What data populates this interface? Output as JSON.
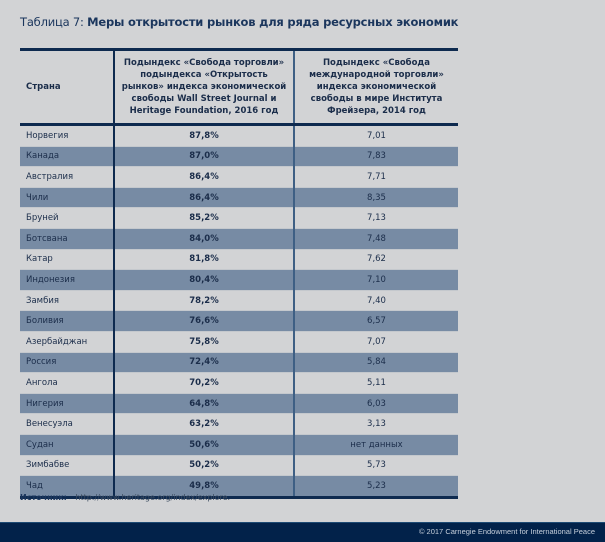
{
  "title": {
    "prefix": "Таблица 7: ",
    "main": "Меры открытости рынков для ряда ресурсных экономик"
  },
  "table": {
    "headers": [
      "Страна",
      "Подындекс «Свобода торговли» подындекса «Открытость рынков» индекса экономической свободы Wall Street Journal и Heritage Foundation, 2016 год",
      "Подындекс «Свобода международной торговли» индекса экономической свободы в мире Института Фрейзера, 2014 год"
    ],
    "rows": [
      {
        "country": "Норвегия",
        "heritage": "87,8%",
        "fraser": "7,01"
      },
      {
        "country": "Канада",
        "heritage": "87,0%",
        "fraser": "7,83"
      },
      {
        "country": "Австралия",
        "heritage": "86,4%",
        "fraser": "7,71"
      },
      {
        "country": "Чили",
        "heritage": "86,4%",
        "fraser": "8,35"
      },
      {
        "country": "Бруней",
        "heritage": "85,2%",
        "fraser": "7,13"
      },
      {
        "country": "Ботсвана",
        "heritage": "84,0%",
        "fraser": "7,48"
      },
      {
        "country": "Катар",
        "heritage": "81,8%",
        "fraser": "7,62"
      },
      {
        "country": "Индонезия",
        "heritage": "80,4%",
        "fraser": "7,10"
      },
      {
        "country": "Замбия",
        "heritage": "78,2%",
        "fraser": "7,40"
      },
      {
        "country": "Боливия",
        "heritage": "76,6%",
        "fraser": "6,57"
      },
      {
        "country": "Азербайджан",
        "heritage": "75,8%",
        "fraser": "7,07"
      },
      {
        "country": "Россия",
        "heritage": "72,4%",
        "fraser": "5,84"
      },
      {
        "country": "Ангола",
        "heritage": "70,2%",
        "fraser": "5,11"
      },
      {
        "country": "Нигерия",
        "heritage": "64,8%",
        "fraser": "6,03"
      },
      {
        "country": "Венесуэла",
        "heritage": "63,2%",
        "fraser": "3,13"
      },
      {
        "country": "Судан",
        "heritage": "50,6%",
        "fraser": "нет данных"
      },
      {
        "country": "Зимбабве",
        "heritage": "50,2%",
        "fraser": "5,73"
      },
      {
        "country": "Чад",
        "heritage": "49,8%",
        "fraser": "5,23"
      }
    ]
  },
  "source": {
    "label": "Источник:",
    "text": "http://www.heritage.org/index/explore."
  },
  "footer": {
    "copyright": "© 2017 Carnegie Endowment for International Peace"
  },
  "colors": {
    "background": "#d2d3d5",
    "alt_row": "#778ba4",
    "rule": "#0e2a4f",
    "footer_bar": "#02224a"
  }
}
